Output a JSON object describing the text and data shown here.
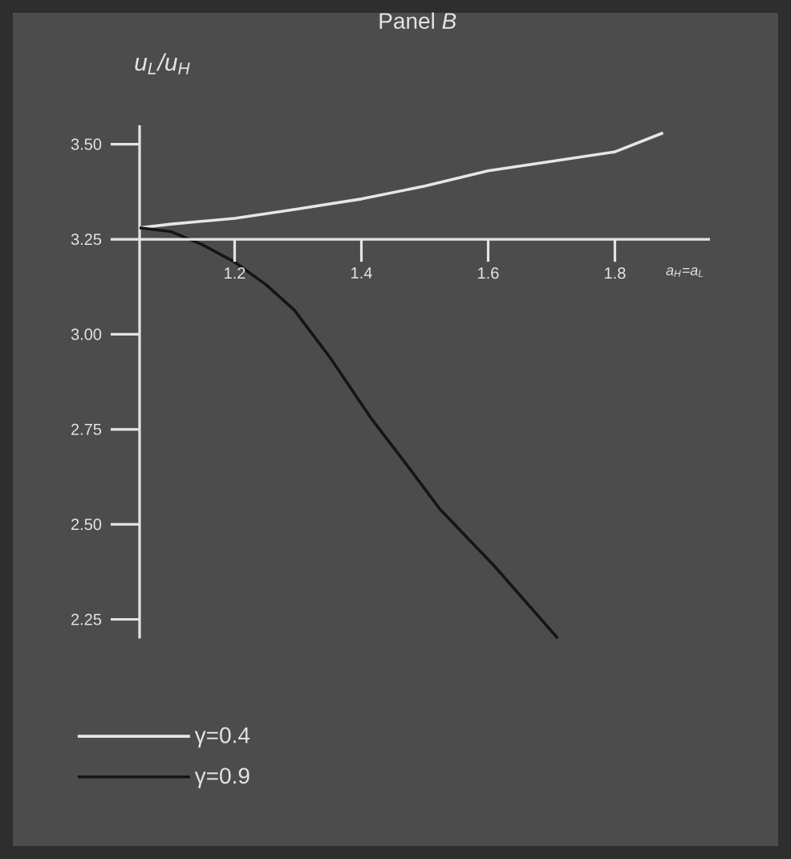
{
  "chart_data": {
    "type": "line",
    "title": "Panel *B*",
    "xlabel": "a$_{H}$=a$_{L}$",
    "ylabel": "u$_{L}$/u$_{H}$",
    "xlim": [
      1.05,
      1.95
    ],
    "ylim": [
      2.2,
      3.55
    ],
    "xticks": [
      1.2,
      1.4,
      1.6,
      1.8
    ],
    "yticks": [
      {
        "value": 2.25,
        "label": "2.25"
      },
      {
        "value": 2.5,
        "label": "2.50"
      },
      {
        "value": 2.75,
        "label": "2.75"
      },
      {
        "value": 3.0,
        "label": "3.00"
      },
      {
        "value": 3.25,
        "label": "3.25"
      },
      {
        "value": 3.5,
        "label": "3.50"
      }
    ],
    "legend": "bottom left",
    "series": [
      {
        "name": "γ=0.4",
        "color": "#e6e6e6",
        "x": [
          1.05,
          1.1,
          1.2,
          1.3,
          1.4,
          1.5,
          1.6,
          1.7,
          1.8,
          1.876
        ],
        "values": [
          3.28,
          3.29,
          3.305,
          3.33,
          3.356,
          3.39,
          3.43,
          3.455,
          3.48,
          3.53
        ]
      },
      {
        "name": "γ=0.9",
        "color": "#151515",
        "x": [
          1.05,
          1.1,
          1.15,
          1.2,
          1.25,
          1.294,
          1.35,
          1.415,
          1.47,
          1.524,
          1.61,
          1.71
        ],
        "values": [
          3.28,
          3.27,
          3.235,
          3.19,
          3.13,
          3.064,
          2.94,
          2.78,
          2.66,
          2.54,
          2.39,
          2.2
        ]
      }
    ]
  }
}
